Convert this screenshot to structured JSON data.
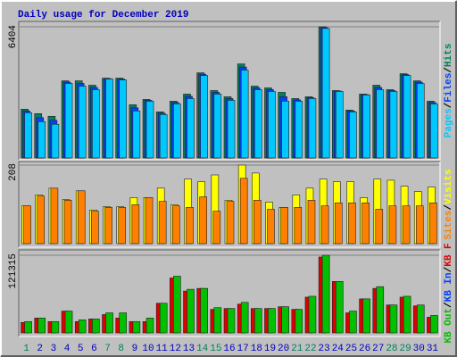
{
  "chart_data": {
    "type": "bar",
    "title": "Daily usage for December 2019",
    "separator": "/",
    "categories": [
      "1",
      "2",
      "3",
      "4",
      "5",
      "6",
      "7",
      "8",
      "9",
      "10",
      "11",
      "12",
      "13",
      "14",
      "15",
      "16",
      "17",
      "18",
      "19",
      "20",
      "21",
      "22",
      "23",
      "24",
      "25",
      "26",
      "27",
      "28",
      "29",
      "30",
      "31"
    ],
    "category_colors": [
      "#00805c",
      "#0000c0",
      "#0000c0",
      "#0000c0",
      "#0000c0",
      "#0000c0",
      "#00805c",
      "#00805c",
      "#0000c0",
      "#0000c0",
      "#0000c0",
      "#0000c0",
      "#0000c0",
      "#00805c",
      "#00805c",
      "#0000c0",
      "#0000c0",
      "#0000c0",
      "#0000c0",
      "#0000c0",
      "#00805c",
      "#00805c",
      "#0000c0",
      "#0000c0",
      "#0000c0",
      "#0000c0",
      "#0000c0",
      "#00805c",
      "#00805c",
      "#0000c0",
      "#0000c0"
    ],
    "panels": [
      {
        "ylim": [
          0,
          6404
        ],
        "yticks": [
          6404
        ],
        "series": [
          {
            "name": "Hits",
            "color": "#00805c",
            "values": [
              2382,
              2165,
              2035,
              3767,
              3767,
              3551,
              3897,
              3897,
              2598,
              2858,
              2252,
              2771,
              3118,
              4157,
              3291,
              2988,
              4590,
              3507,
              3421,
              3204,
              2901,
              2988,
              6404,
              3291,
              2338,
              3118,
              3551,
              3334,
              4114,
              3767,
              2771
            ]
          },
          {
            "name": "Files",
            "color": "#0040ff",
            "values": [
              2295,
              1970,
              1840,
              3702,
              3637,
              3442,
              3875,
              3853,
              2446,
              2814,
              2187,
              2706,
              3009,
              4092,
              3204,
              2901,
              4438,
              3420,
              3334,
              2987,
              2836,
              2944,
              6363,
              3270,
              2295,
              3096,
              3442,
              3291,
              4070,
              3702,
              2706
            ]
          },
          {
            "name": "Pages",
            "color": "#00c8ff",
            "values": [
              2208,
              1775,
              1645,
              3637,
              3507,
              3334,
              3854,
              3810,
              2295,
              2771,
              2122,
              2641,
              2901,
              4027,
              3118,
              2815,
              4287,
              3334,
              3248,
              2771,
              2771,
              2901,
              6322,
              3248,
              2252,
              3074,
              3334,
              3248,
              4027,
              3637,
              2641
            ]
          }
        ]
      },
      {
        "ylim": [
          0,
          208
        ],
        "yticks": [
          208
        ],
        "series": [
          {
            "name": "Visits",
            "color": "#ffff00",
            "values": [
              100,
              129,
              147,
              117,
              140,
              89,
              98,
              98,
              122,
              122,
              147,
              103,
              171,
              164,
              182,
              115,
              208,
              187,
              110,
              96,
              129,
              147,
              171,
              164,
              164,
              122,
              171,
              168,
              152,
              138,
              150
            ]
          },
          {
            "name": "Sites",
            "color": "#ff8000",
            "values": [
              100,
              126,
              147,
              115,
              140,
              86,
              96,
              96,
              103,
              122,
              112,
              100,
              96,
              124,
              86,
              112,
              173,
              115,
              91,
              96,
              96,
              115,
              100,
              108,
              108,
              108,
              91,
              100,
              100,
              100,
              108
            ]
          }
        ]
      },
      {
        "ylim": [
          0,
          121315
        ],
        "yticks": [
          121315
        ],
        "series": [
          {
            "name": "KB F",
            "color": "#e00000",
            "values": [
              16356,
              23171,
              17719,
              34075,
              17719,
              21808,
              28623,
              23171,
              17719,
              17719,
              46342,
              85869,
              65424,
              69513,
              36801,
              38164,
              44979,
              38164,
              38164,
              40890,
              36801,
              55883,
              118581,
              80417,
              31349,
              53157,
              69513,
              43616,
              55883,
              42253,
              24534
            ]
          },
          {
            "name": "KB In",
            "color": "#0040ff",
            "values": [
              0,
              0,
              0,
              0,
              0,
              0,
              0,
              0,
              0,
              0,
              0,
              0,
              0,
              0,
              0,
              0,
              0,
              0,
              0,
              0,
              0,
              0,
              0,
              0,
              0,
              0,
              0,
              0,
              0,
              0,
              0
            ]
          },
          {
            "name": "KB Out",
            "color": "#00c000",
            "values": [
              17719,
              23171,
              17719,
              34075,
              20445,
              21808,
              31349,
              31349,
              17719,
              23171,
              46342,
              88595,
              68150,
              69513,
              39527,
              38164,
              47705,
              38164,
              38164,
              40890,
              36801,
              57246,
              121315,
              80417,
              34075,
              53157,
              72239,
              43616,
              57246,
              43616,
              27260
            ]
          }
        ]
      }
    ]
  }
}
